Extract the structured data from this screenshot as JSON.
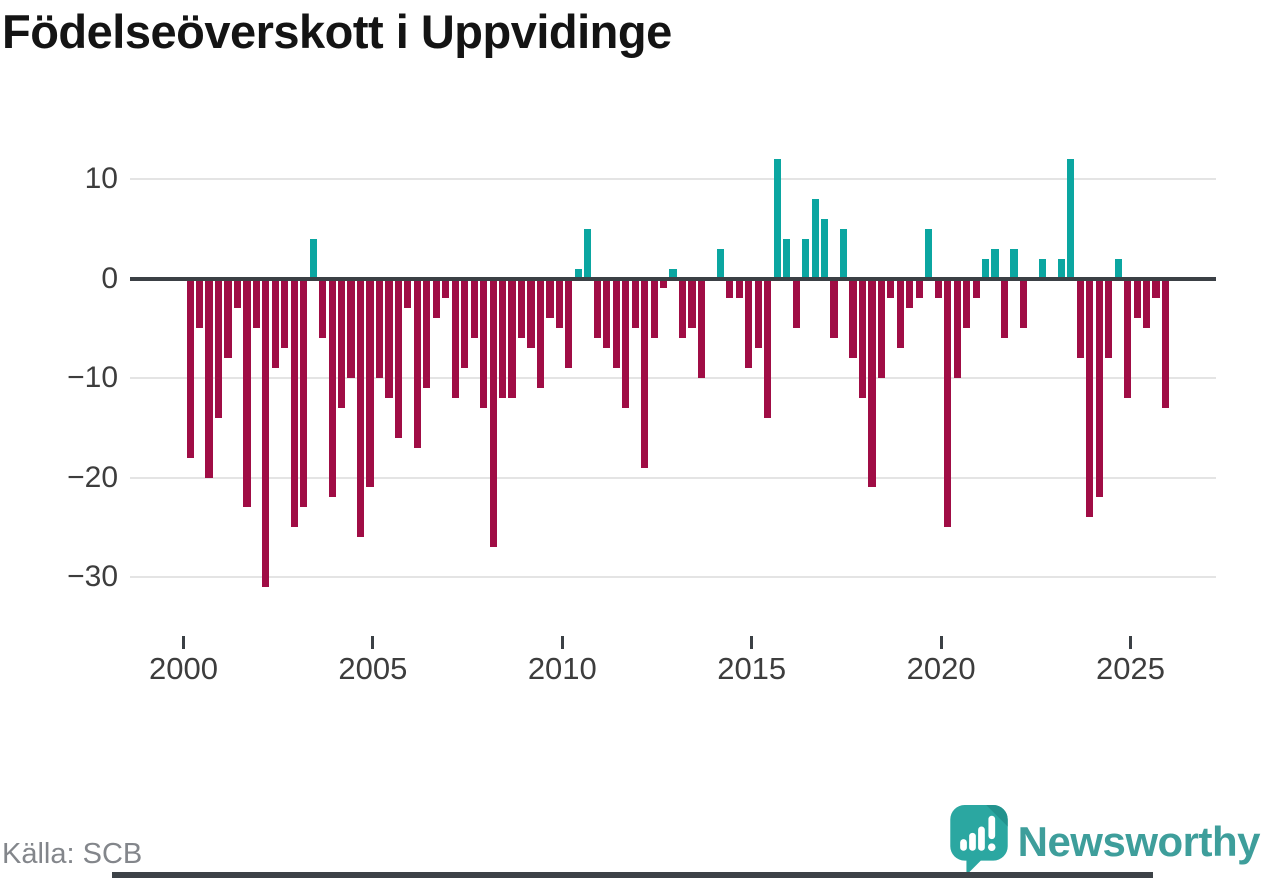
{
  "title": "Födelseöverskott i Uppvidinge",
  "source": "Källa: SCB",
  "brand": {
    "name": "Newsworthy",
    "icon": "newsworthy-speech-bubble-chart-icon",
    "wordmark_color": "#3e9e9b",
    "icon_color": "#2ba7a1",
    "icon_fold_color": "#23938e"
  },
  "chart_data": {
    "type": "bar",
    "title": "Födelseöverskott i Uppvidinge",
    "frequency": "quarterly",
    "start_period": "2000 Q1",
    "end_period": "2025 Q4",
    "values": [
      -18,
      -5,
      -20,
      -14,
      -8,
      -3,
      -23,
      -5,
      -31,
      -9,
      -7,
      -25,
      -23,
      4,
      -6,
      -22,
      -13,
      -10,
      -26,
      -21,
      -10,
      -12,
      -16,
      -3,
      -17,
      -11,
      -4,
      -2,
      -12,
      -9,
      -6,
      -13,
      -27,
      -12,
      -12,
      -6,
      -7,
      -11,
      -4,
      -5,
      -9,
      1,
      5,
      -6,
      -7,
      -9,
      -13,
      -5,
      -19,
      -6,
      -1,
      1,
      -6,
      -5,
      -10,
      0,
      3,
      -2,
      -2,
      -9,
      -7,
      -14,
      12,
      4,
      -5,
      4,
      8,
      6,
      -6,
      5,
      -8,
      -12,
      -21,
      -10,
      -2,
      -7,
      -3,
      -2,
      5,
      -2,
      -25,
      -10,
      -5,
      -2,
      2,
      3,
      -6,
      3,
      -5,
      0,
      2,
      0,
      2,
      12,
      -8,
      -24,
      -22,
      -8,
      2,
      -12,
      -4,
      -5,
      -2,
      -13
    ],
    "y_ticks": [
      10,
      0,
      -10,
      -20,
      -30
    ],
    "y_tick_labels": [
      "10",
      "0",
      "−10",
      "−20",
      "−30"
    ],
    "x_tick_years": [
      2000,
      2005,
      2010,
      2015,
      2020,
      2025
    ],
    "x_tick_labels": [
      "2000",
      "2005",
      "2010",
      "2015",
      "2020",
      "2025"
    ],
    "ylim": [
      -33,
      13
    ],
    "grid": true,
    "legend": "none",
    "positive_color": "#0ba6a1",
    "negative_color": "#a00d45",
    "zero_line_color": "#3b4045"
  }
}
